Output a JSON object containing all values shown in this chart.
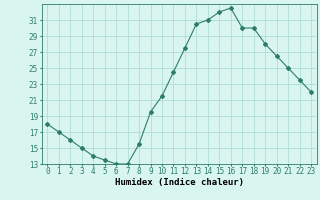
{
  "x": [
    0,
    1,
    2,
    3,
    4,
    5,
    6,
    7,
    8,
    9,
    10,
    11,
    12,
    13,
    14,
    15,
    16,
    17,
    18,
    19,
    20,
    21,
    22,
    23
  ],
  "y": [
    18,
    17,
    16,
    15,
    14,
    13.5,
    13,
    13,
    15.5,
    19.5,
    21.5,
    24.5,
    27.5,
    30.5,
    31,
    32,
    32.5,
    30,
    30,
    28,
    26.5,
    25,
    23.5,
    22
  ],
  "line_color": "#2e7d6b",
  "marker": "D",
  "marker_size": 2,
  "bg_color": "#d8f5f0",
  "grid_color": "#b0ddd8",
  "xlabel": "Humidex (Indice chaleur)",
  "xlim": [
    -0.5,
    23.5
  ],
  "ylim": [
    13,
    33
  ],
  "yticks": [
    13,
    15,
    17,
    19,
    21,
    23,
    25,
    27,
    29,
    31
  ],
  "xtick_labels": [
    "0",
    "1",
    "2",
    "3",
    "4",
    "5",
    "6",
    "7",
    "8",
    "9",
    "10",
    "11",
    "12",
    "13",
    "14",
    "15",
    "16",
    "17",
    "18",
    "19",
    "20",
    "21",
    "22",
    "23"
  ],
  "label_fontsize": 6.5,
  "tick_fontsize": 5.5
}
